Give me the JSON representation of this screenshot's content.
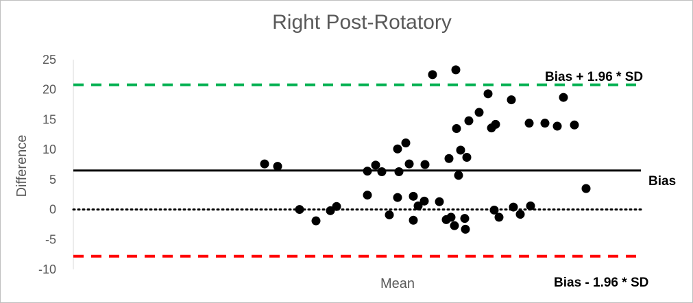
{
  "chart_data": {
    "type": "scatter",
    "title": "Right Post-Rotatory",
    "xlabel": "Mean",
    "ylabel": "Difference",
    "ylim": [
      -10,
      25
    ],
    "yticks": [
      -10,
      -5,
      0,
      5,
      10,
      15,
      20,
      25
    ],
    "grid": false,
    "reference_lines": {
      "upper": {
        "label": "Bias + 1.96 * SD",
        "value": 20.8,
        "color": "#00b050"
      },
      "bias": {
        "label": "Bias",
        "value": 6.5,
        "color": "#000000"
      },
      "zero": {
        "value": 0,
        "color": "#000000"
      },
      "lower": {
        "label": "Bias - 1.96 * SD",
        "value": -7.8,
        "color": "#ff0000"
      }
    },
    "points": [
      {
        "x": 386,
        "y": 7.6
      },
      {
        "x": 405,
        "y": 7.2
      },
      {
        "x": 437,
        "y": 0.0
      },
      {
        "x": 461,
        "y": -1.9
      },
      {
        "x": 482,
        "y": -0.2
      },
      {
        "x": 491,
        "y": 0.5
      },
      {
        "x": 536,
        "y": 6.4
      },
      {
        "x": 536,
        "y": 2.4
      },
      {
        "x": 548,
        "y": 7.4
      },
      {
        "x": 557,
        "y": 6.3
      },
      {
        "x": 568,
        "y": -0.9
      },
      {
        "x": 580,
        "y": 10.1
      },
      {
        "x": 580,
        "y": 2.0
      },
      {
        "x": 582,
        "y": 6.3
      },
      {
        "x": 592,
        "y": 11.1
      },
      {
        "x": 597,
        "y": 7.6
      },
      {
        "x": 603,
        "y": 2.2
      },
      {
        "x": 603,
        "y": -1.8
      },
      {
        "x": 610,
        "y": 0.6
      },
      {
        "x": 619,
        "y": 1.4
      },
      {
        "x": 620,
        "y": 7.5
      },
      {
        "x": 631,
        "y": 22.5
      },
      {
        "x": 641,
        "y": 1.3
      },
      {
        "x": 651,
        "y": -1.7
      },
      {
        "x": 655,
        "y": 8.5
      },
      {
        "x": 658,
        "y": -1.3
      },
      {
        "x": 663,
        "y": -2.7
      },
      {
        "x": 665,
        "y": 23.3
      },
      {
        "x": 666,
        "y": 13.5
      },
      {
        "x": 669,
        "y": 5.7
      },
      {
        "x": 672,
        "y": 9.9
      },
      {
        "x": 678,
        "y": -1.5
      },
      {
        "x": 679,
        "y": -3.3
      },
      {
        "x": 681,
        "y": 8.7
      },
      {
        "x": 684,
        "y": 14.8
      },
      {
        "x": 699,
        "y": 16.2
      },
      {
        "x": 712,
        "y": 19.3
      },
      {
        "x": 717,
        "y": 13.6
      },
      {
        "x": 721,
        "y": -0.1
      },
      {
        "x": 723,
        "y": 14.2
      },
      {
        "x": 728,
        "y": -1.3
      },
      {
        "x": 746,
        "y": 18.3
      },
      {
        "x": 749,
        "y": 0.4
      },
      {
        "x": 759,
        "y": -0.8
      },
      {
        "x": 772,
        "y": 14.4
      },
      {
        "x": 774,
        "y": 0.6
      },
      {
        "x": 795,
        "y": 14.4
      },
      {
        "x": 813,
        "y": 13.9
      },
      {
        "x": 822,
        "y": 18.7
      },
      {
        "x": 838,
        "y": 14.1
      },
      {
        "x": 855,
        "y": 3.5
      }
    ]
  }
}
